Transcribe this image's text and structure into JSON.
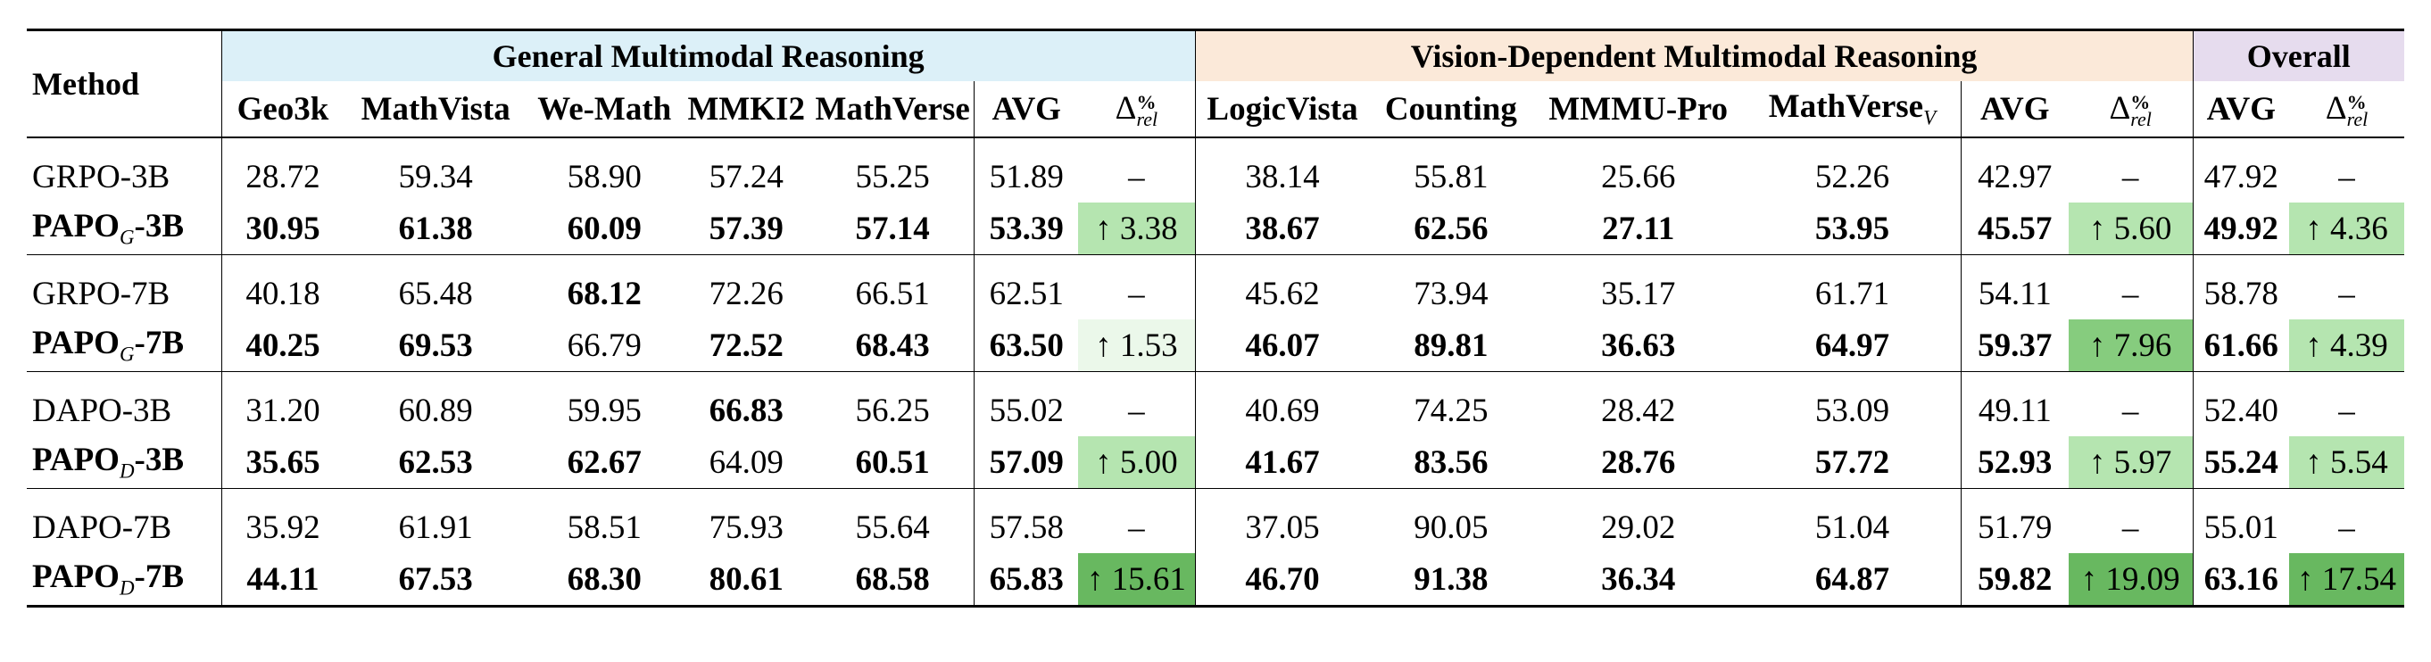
{
  "header": {
    "method": "Method",
    "groups": {
      "general": "General Multimodal Reasoning",
      "vision": "Vision-Dependent Multimodal Reasoning",
      "overall": "Overall"
    },
    "general_cols": [
      "Geo3k",
      "MathVista",
      "We-Math",
      "MMKI2",
      "MathVerse",
      "AVG"
    ],
    "vision_cols": [
      "LogicVista",
      "Counting",
      "MMMU-Pro",
      "MathVerse",
      "AVG"
    ],
    "vision_col_sub": "V",
    "overall_cols": [
      "AVG"
    ],
    "delta_label": "Δ",
    "delta_sup": "%",
    "delta_sub": "rel"
  },
  "groups": [
    {
      "rows": [
        {
          "name": "GRPO-3B",
          "name_bold": "",
          "name_sub": "",
          "name_suffix": "",
          "general": [
            "28.72",
            "59.34",
            "58.90",
            "57.24",
            "55.25"
          ],
          "general_bold": [
            false,
            false,
            false,
            false,
            false
          ],
          "general_avg": "51.89",
          "general_delta": "–",
          "vision": [
            "38.14",
            "55.81",
            "25.66",
            "52.26"
          ],
          "vision_bold": [
            false,
            false,
            false,
            false
          ],
          "vision_avg": "42.97",
          "vision_delta": "–",
          "overall_avg": "47.92",
          "overall_delta": "–",
          "bold_avgs": false
        },
        {
          "name": "",
          "name_bold": "PAPO",
          "name_sub": "G",
          "name_suffix": "-3B",
          "general": [
            "30.95",
            "61.38",
            "60.09",
            "57.39",
            "57.14"
          ],
          "general_bold": [
            true,
            true,
            true,
            true,
            true
          ],
          "general_avg": "53.39",
          "general_delta": "↑ 3.38",
          "vision": [
            "38.67",
            "62.56",
            "27.11",
            "53.95"
          ],
          "vision_bold": [
            true,
            true,
            true,
            true
          ],
          "vision_avg": "45.57",
          "vision_delta": "↑ 5.60",
          "overall_avg": "49.92",
          "overall_delta": "↑ 4.36",
          "bold_avgs": true
        }
      ]
    },
    {
      "rows": [
        {
          "name": "GRPO-7B",
          "name_bold": "",
          "name_sub": "",
          "name_suffix": "",
          "general": [
            "40.18",
            "65.48",
            "68.12",
            "72.26",
            "66.51"
          ],
          "general_bold": [
            false,
            false,
            true,
            false,
            false
          ],
          "general_avg": "62.51",
          "general_delta": "–",
          "vision": [
            "45.62",
            "73.94",
            "35.17",
            "61.71"
          ],
          "vision_bold": [
            false,
            false,
            false,
            false
          ],
          "vision_avg": "54.11",
          "vision_delta": "–",
          "overall_avg": "58.78",
          "overall_delta": "–",
          "bold_avgs": false
        },
        {
          "name": "",
          "name_bold": "PAPO",
          "name_sub": "G",
          "name_suffix": "-7B",
          "general": [
            "40.25",
            "69.53",
            "66.79",
            "72.52",
            "68.43"
          ],
          "general_bold": [
            true,
            true,
            false,
            true,
            true
          ],
          "general_avg": "63.50",
          "general_delta": "↑ 1.53",
          "vision": [
            "46.07",
            "89.81",
            "36.63",
            "64.97"
          ],
          "vision_bold": [
            true,
            true,
            true,
            true
          ],
          "vision_avg": "59.37",
          "vision_delta": "↑ 7.96",
          "overall_avg": "61.66",
          "overall_delta": "↑ 4.39",
          "bold_avgs": true
        }
      ]
    },
    {
      "rows": [
        {
          "name": "DAPO-3B",
          "name_bold": "",
          "name_sub": "",
          "name_suffix": "",
          "general": [
            "31.20",
            "60.89",
            "59.95",
            "66.83",
            "56.25"
          ],
          "general_bold": [
            false,
            false,
            false,
            true,
            false
          ],
          "general_avg": "55.02",
          "general_delta": "–",
          "vision": [
            "40.69",
            "74.25",
            "28.42",
            "53.09"
          ],
          "vision_bold": [
            false,
            false,
            false,
            false
          ],
          "vision_avg": "49.11",
          "vision_delta": "–",
          "overall_avg": "52.40",
          "overall_delta": "–",
          "bold_avgs": false
        },
        {
          "name": "",
          "name_bold": "PAPO",
          "name_sub": "D",
          "name_suffix": "-3B",
          "general": [
            "35.65",
            "62.53",
            "62.67",
            "64.09",
            "60.51"
          ],
          "general_bold": [
            true,
            true,
            true,
            false,
            true
          ],
          "general_avg": "57.09",
          "general_delta": "↑ 5.00",
          "vision": [
            "41.67",
            "83.56",
            "28.76",
            "57.72"
          ],
          "vision_bold": [
            true,
            true,
            true,
            true
          ],
          "vision_avg": "52.93",
          "vision_delta": "↑ 5.97",
          "overall_avg": "55.24",
          "overall_delta": "↑ 5.54",
          "bold_avgs": true
        }
      ]
    },
    {
      "rows": [
        {
          "name": "DAPO-7B",
          "name_bold": "",
          "name_sub": "",
          "name_suffix": "",
          "general": [
            "35.92",
            "61.91",
            "58.51",
            "75.93",
            "55.64"
          ],
          "general_bold": [
            false,
            false,
            false,
            false,
            false
          ],
          "general_avg": "57.58",
          "general_delta": "–",
          "vision": [
            "37.05",
            "90.05",
            "29.02",
            "51.04"
          ],
          "vision_bold": [
            false,
            false,
            false,
            false
          ],
          "vision_avg": "51.79",
          "vision_delta": "–",
          "overall_avg": "55.01",
          "overall_delta": "–",
          "bold_avgs": false
        },
        {
          "name": "",
          "name_bold": "PAPO",
          "name_sub": "D",
          "name_suffix": "-7B",
          "general": [
            "44.11",
            "67.53",
            "68.30",
            "80.61",
            "68.58"
          ],
          "general_bold": [
            true,
            true,
            true,
            true,
            true
          ],
          "general_avg": "65.83",
          "general_delta": "↑ 15.61",
          "vision": [
            "46.70",
            "91.38",
            "36.34",
            "64.87"
          ],
          "vision_bold": [
            true,
            true,
            true,
            true
          ],
          "vision_avg": "59.82",
          "vision_delta": "↑ 19.09",
          "overall_avg": "63.16",
          "overall_delta": "↑ 17.54",
          "bold_avgs": true
        }
      ]
    }
  ],
  "colors": {
    "general_header": "#dcf0f8",
    "vision_header": "#fbe9d9",
    "overall_header": "#e6dcee",
    "delta_shades": [
      "#ebf8ea",
      "#b5e5b0",
      "#86cc7e",
      "#68b860"
    ]
  }
}
